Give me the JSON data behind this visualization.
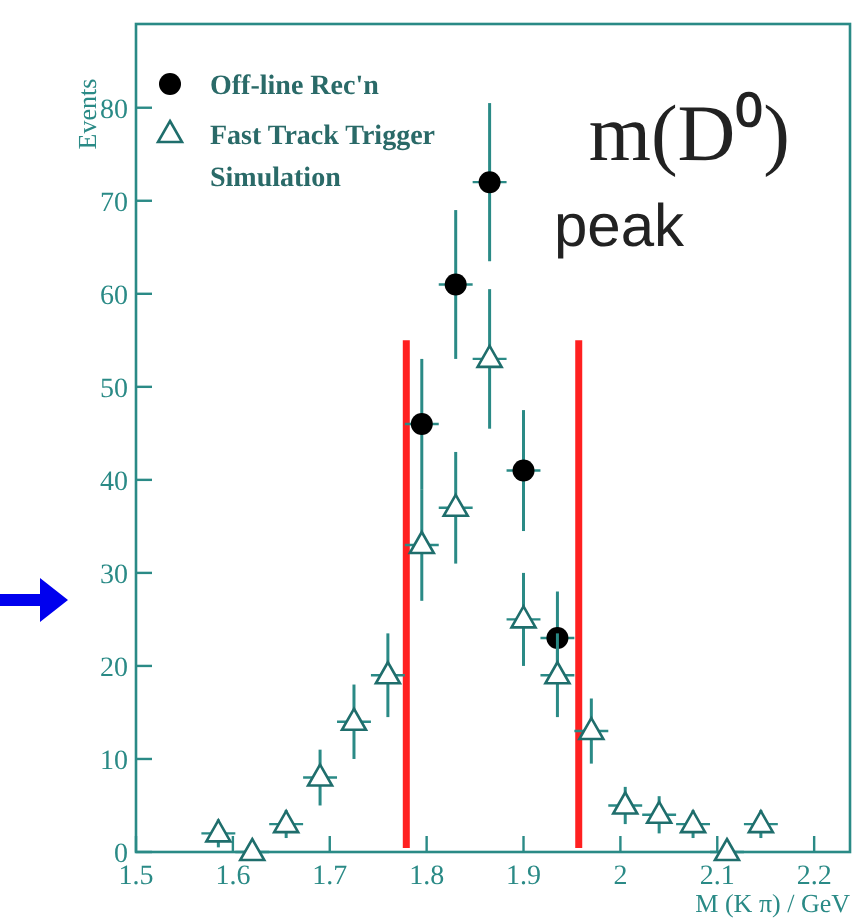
{
  "chart_data": {
    "type": "scatter",
    "xlabel": "M (K π) / GeV",
    "ylabel": "Events",
    "annotations": [
      "m(D⁰)",
      "peak"
    ],
    "xlim": [
      1.5,
      2.237
    ],
    "xticks": [
      1.5,
      1.6,
      1.7,
      1.8,
      1.9,
      {
        "value": 2,
        "label": "2"
      },
      2.1,
      2.2
    ],
    "ylim": [
      0,
      89
    ],
    "yticks": [
      0,
      10,
      20,
      30,
      40,
      50,
      60,
      70,
      80
    ],
    "grid": false,
    "legend": "top left",
    "ref_lines": [
      {
        "axis": "x",
        "value": 1.779,
        "color": "#ff2020"
      },
      {
        "axis": "x",
        "value": 1.957,
        "color": "#ff2020"
      }
    ],
    "series": [
      {
        "name": "Off-line Rec'n",
        "color": "#000000",
        "marker": "circle",
        "x": [
          1.795,
          1.83,
          1.865,
          1.9,
          1.935
        ],
        "values": [
          46,
          61,
          72,
          41,
          23
        ],
        "errors": [
          7,
          8,
          8.5,
          6.5,
          5
        ],
        "xerrors": [
          0.0175,
          0.0175,
          0.0175,
          0.0175,
          0.0175
        ]
      },
      {
        "name": "Fast Track Trigger Simulation",
        "color": "#1f6e6c",
        "marker": "triangle",
        "x": [
          1.585,
          1.62,
          1.655,
          1.69,
          1.725,
          1.76,
          1.795,
          1.83,
          1.865,
          1.9,
          1.935,
          1.97,
          2.005,
          2.04,
          2.075,
          2.11,
          2.145
        ],
        "values": [
          2,
          0,
          3,
          8,
          14,
          19,
          33,
          37,
          53,
          25,
          19,
          13,
          5,
          4,
          3,
          0,
          3
        ],
        "errors": [
          1.5,
          null,
          1.5,
          3,
          4,
          4.5,
          6,
          6,
          7.5,
          5,
          4.5,
          3.5,
          2,
          2,
          1.5,
          null,
          1.5
        ],
        "xerrors": [
          0.0175,
          0.0175,
          0.0175,
          0.0175,
          0.0175,
          0.0175,
          0.0175,
          0.0175,
          0.0175,
          0.0175,
          0.0175,
          0.0175,
          0.0175,
          0.0175,
          0.0175,
          0.0175,
          0.0175
        ]
      }
    ]
  }
}
